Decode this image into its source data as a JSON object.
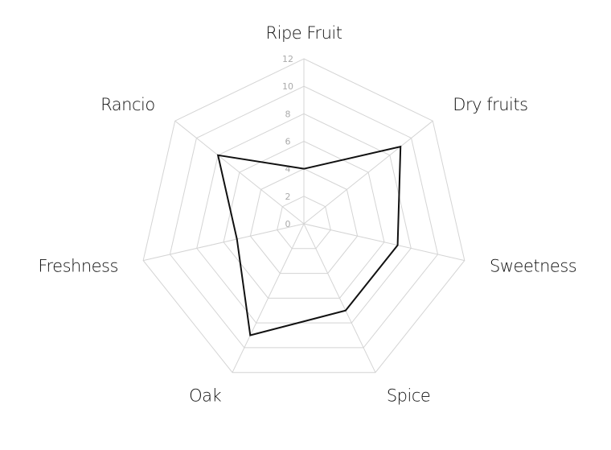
{
  "chart_data": {
    "type": "radar",
    "categories": [
      "Ripe Fruit",
      "Dry fruits",
      "Sweetness",
      "Spice",
      "Oak",
      "Freshness",
      "Rancio"
    ],
    "values": [
      4,
      9,
      7,
      7,
      9,
      5,
      8
    ],
    "color": "#111111",
    "rlim": [
      0,
      12
    ],
    "rticks": [
      0,
      2,
      4,
      6,
      8,
      10,
      12
    ],
    "grid": true
  }
}
